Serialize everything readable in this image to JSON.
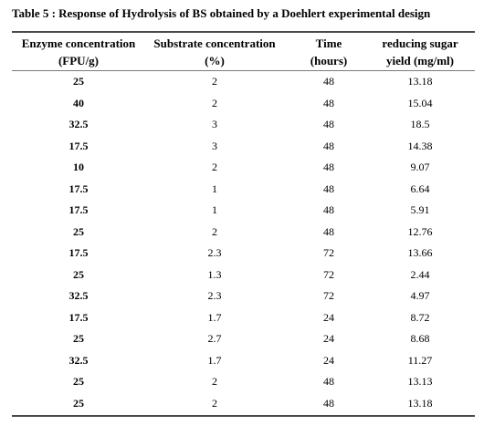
{
  "table": {
    "caption": "Table 5 : Response of Hydrolysis of BS obtained by a Doehlert experimental design",
    "headers": [
      {
        "line1": "Enzyme concentration",
        "line2": "(FPU/g)"
      },
      {
        "line1": "Substrate concentration",
        "line2": "(%)"
      },
      {
        "line1": "Time",
        "line2": "(hours)"
      },
      {
        "line1": "reducing sugar",
        "line2": "yield (mg/ml)"
      }
    ],
    "rows": [
      [
        "25",
        "2",
        "48",
        "13.18"
      ],
      [
        "40",
        "2",
        "48",
        "15.04"
      ],
      [
        "32.5",
        "3",
        "48",
        "18.5"
      ],
      [
        "17.5",
        "3",
        "48",
        "14.38"
      ],
      [
        "10",
        "2",
        "48",
        "9.07"
      ],
      [
        "17.5",
        "1",
        "48",
        "6.64"
      ],
      [
        "17.5",
        "1",
        "48",
        "5.91"
      ],
      [
        "25",
        "2",
        "48",
        "12.76"
      ],
      [
        "17.5",
        "2.3",
        "72",
        "13.66"
      ],
      [
        "25",
        "1.3",
        "72",
        "2.44"
      ],
      [
        "32.5",
        "2.3",
        "72",
        "4.97"
      ],
      [
        "17.5",
        "1.7",
        "24",
        "8.72"
      ],
      [
        "25",
        "2.7",
        "24",
        "8.68"
      ],
      [
        "32.5",
        "1.7",
        "24",
        "11.27"
      ],
      [
        "25",
        "2",
        "48",
        "13.13"
      ],
      [
        "25",
        "2",
        "48",
        "13.18"
      ]
    ]
  }
}
